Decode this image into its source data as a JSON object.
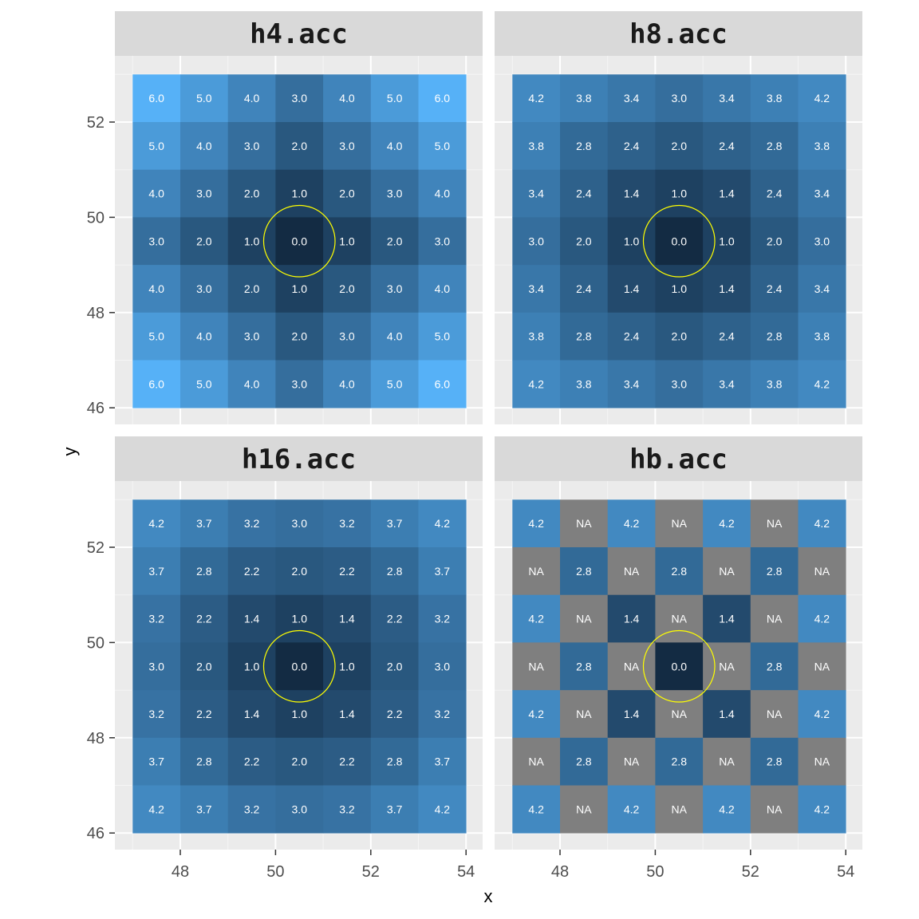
{
  "chart_data": {
    "type": "heatmap",
    "xlabel": "x",
    "ylabel": "y",
    "x_ticks": [
      48,
      50,
      52,
      54
    ],
    "y_ticks": [
      46,
      48,
      50,
      52
    ],
    "xlim": [
      47,
      54
    ],
    "ylim": [
      46,
      53
    ],
    "x_centers": [
      47.5,
      48.5,
      49.5,
      50.5,
      51.5,
      52.5,
      53.5
    ],
    "y_centers": [
      52.5,
      51.5,
      50.5,
      49.5,
      48.5,
      47.5,
      46.5
    ],
    "color_scale": {
      "low": "#132B43",
      "high": "#56B1F7",
      "na": "#7f7f7f"
    },
    "highlight_circle": {
      "x": 50.5,
      "y": 49.5,
      "radius": 0.75,
      "color": "#ffff00"
    },
    "panels": [
      {
        "title": "h4.acc",
        "min": 0,
        "max": 6,
        "grid": [
          [
            "6.0",
            "5.0",
            "4.0",
            "3.0",
            "4.0",
            "5.0",
            "6.0"
          ],
          [
            "5.0",
            "4.0",
            "3.0",
            "2.0",
            "3.0",
            "4.0",
            "5.0"
          ],
          [
            "4.0",
            "3.0",
            "2.0",
            "1.0",
            "2.0",
            "3.0",
            "4.0"
          ],
          [
            "3.0",
            "2.0",
            "1.0",
            "0.0",
            "1.0",
            "2.0",
            "3.0"
          ],
          [
            "4.0",
            "3.0",
            "2.0",
            "1.0",
            "2.0",
            "3.0",
            "4.0"
          ],
          [
            "5.0",
            "4.0",
            "3.0",
            "2.0",
            "3.0",
            "4.0",
            "5.0"
          ],
          [
            "6.0",
            "5.0",
            "4.0",
            "3.0",
            "4.0",
            "5.0",
            "6.0"
          ]
        ]
      },
      {
        "title": "h8.acc",
        "min": 0,
        "max": 6,
        "grid": [
          [
            "4.2",
            "3.8",
            "3.4",
            "3.0",
            "3.4",
            "3.8",
            "4.2"
          ],
          [
            "3.8",
            "2.8",
            "2.4",
            "2.0",
            "2.4",
            "2.8",
            "3.8"
          ],
          [
            "3.4",
            "2.4",
            "1.4",
            "1.0",
            "1.4",
            "2.4",
            "3.4"
          ],
          [
            "3.0",
            "2.0",
            "1.0",
            "0.0",
            "1.0",
            "2.0",
            "3.0"
          ],
          [
            "3.4",
            "2.4",
            "1.4",
            "1.0",
            "1.4",
            "2.4",
            "3.4"
          ],
          [
            "3.8",
            "2.8",
            "2.4",
            "2.0",
            "2.4",
            "2.8",
            "3.8"
          ],
          [
            "4.2",
            "3.8",
            "3.4",
            "3.0",
            "3.4",
            "3.8",
            "4.2"
          ]
        ]
      },
      {
        "title": "h16.acc",
        "min": 0,
        "max": 6,
        "grid": [
          [
            "4.2",
            "3.7",
            "3.2",
            "3.0",
            "3.2",
            "3.7",
            "4.2"
          ],
          [
            "3.7",
            "2.8",
            "2.2",
            "2.0",
            "2.2",
            "2.8",
            "3.7"
          ],
          [
            "3.2",
            "2.2",
            "1.4",
            "1.0",
            "1.4",
            "2.2",
            "3.2"
          ],
          [
            "3.0",
            "2.0",
            "1.0",
            "0.0",
            "1.0",
            "2.0",
            "3.0"
          ],
          [
            "3.2",
            "2.2",
            "1.4",
            "1.0",
            "1.4",
            "2.2",
            "3.2"
          ],
          [
            "3.7",
            "2.8",
            "2.2",
            "2.0",
            "2.2",
            "2.8",
            "3.7"
          ],
          [
            "4.2",
            "3.7",
            "3.2",
            "3.0",
            "3.2",
            "3.7",
            "4.2"
          ]
        ]
      },
      {
        "title": "hb.acc",
        "min": 0,
        "max": 6,
        "grid": [
          [
            "4.2",
            "NA",
            "4.2",
            "NA",
            "4.2",
            "NA",
            "4.2"
          ],
          [
            "NA",
            "2.8",
            "NA",
            "2.8",
            "NA",
            "2.8",
            "NA"
          ],
          [
            "4.2",
            "NA",
            "1.4",
            "NA",
            "1.4",
            "NA",
            "4.2"
          ],
          [
            "NA",
            "2.8",
            "NA",
            "0.0",
            "NA",
            "2.8",
            "NA"
          ],
          [
            "4.2",
            "NA",
            "1.4",
            "NA",
            "1.4",
            "NA",
            "4.2"
          ],
          [
            "NA",
            "2.8",
            "NA",
            "2.8",
            "NA",
            "2.8",
            "NA"
          ],
          [
            "4.2",
            "NA",
            "4.2",
            "NA",
            "4.2",
            "NA",
            "4.2"
          ]
        ]
      }
    ]
  }
}
